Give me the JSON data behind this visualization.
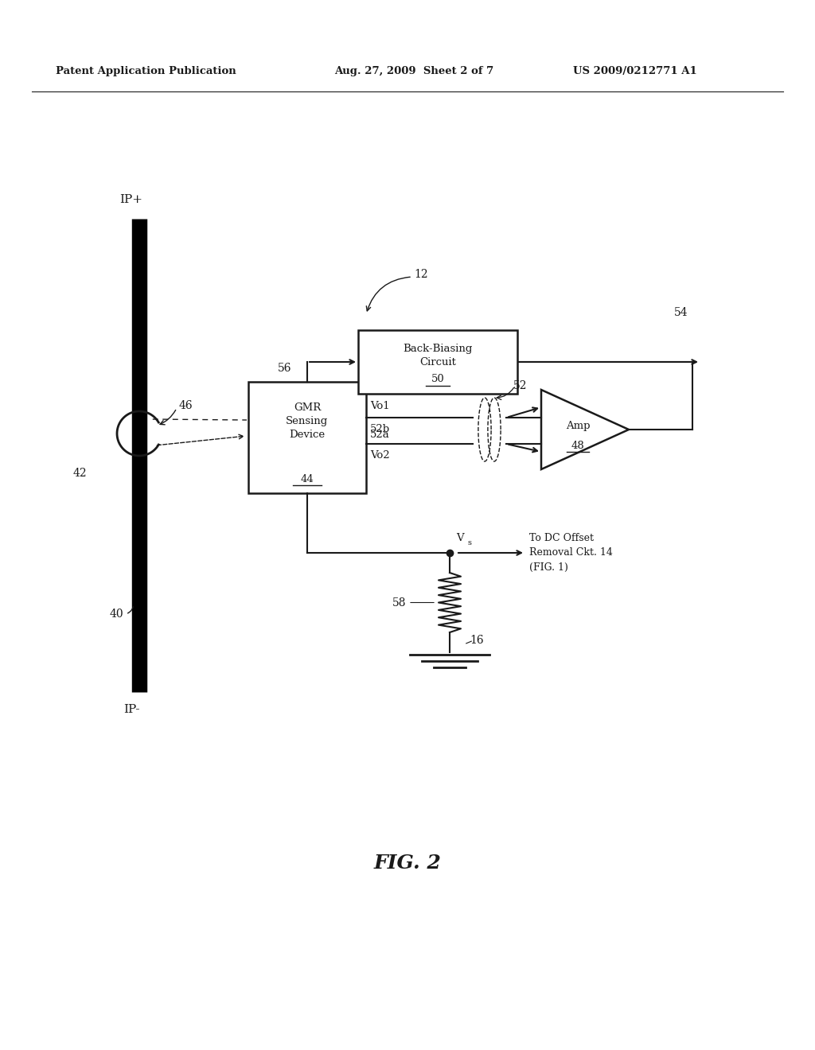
{
  "header_left": "Patent Application Publication",
  "header_mid": "Aug. 27, 2009  Sheet 2 of 7",
  "header_right": "US 2009/0212771 A1",
  "fig_label": "FIG. 2",
  "label_12": "12",
  "label_40": "40",
  "label_42": "42",
  "label_44": "44",
  "label_46": "46",
  "label_48": "48",
  "label_50": "50",
  "label_52": "52",
  "label_52a": "52a",
  "label_52b": "52b",
  "label_54": "54",
  "label_56": "56",
  "label_58": "58",
  "label_16": "16",
  "text_ip_plus": "IP+",
  "text_ip_minus": "IP-",
  "text_vo1": "Vo1",
  "text_vo2": "Vo2",
  "text_vs": "V",
  "text_vs_sub": "s",
  "text_gmr": "GMR\nSensing\nDevice",
  "text_backbias": "Back-Biasing\nCircuit",
  "text_amp": "Amp",
  "text_dcoffset": "To DC Offset\nRemoval Ckt. 14\n(FIG. 1)",
  "bg_color": "#ffffff",
  "line_color": "#1a1a1a",
  "text_color": "#1a1a1a"
}
